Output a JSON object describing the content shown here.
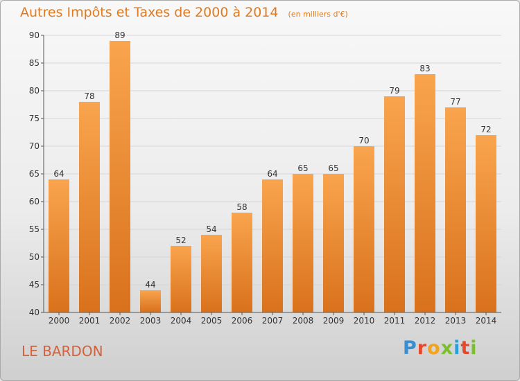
{
  "header": {
    "title": "Autres Impôts et Taxes de 2000 à 2014",
    "unit": "(en milliers d'€)"
  },
  "footer": {
    "commune": "LE BARDON",
    "logo_text": "Proxiti",
    "logo_colors": [
      "#3a8fd1",
      "#e8482a",
      "#f2a21c",
      "#7cbf2e",
      "#2c9fd9",
      "#e8482a",
      "#7cbf2e"
    ]
  },
  "colors": {
    "bar_light": "#f9a44e",
    "bar_dark": "#d9711c",
    "axis": "#555555",
    "grid": "#d6d6d6",
    "title": "#e07a20",
    "commune": "#d4613a"
  },
  "chart_data": {
    "type": "bar",
    "categories": [
      "2000",
      "2001",
      "2002",
      "2003",
      "2004",
      "2005",
      "2006",
      "2007",
      "2008",
      "2009",
      "2010",
      "2011",
      "2012",
      "2013",
      "2014"
    ],
    "values": [
      64,
      78,
      89,
      44,
      52,
      54,
      58,
      64,
      65,
      65,
      70,
      79,
      83,
      77,
      72
    ],
    "title": "Autres Impôts et Taxes de 2000 à 2014",
    "ylim": [
      40,
      90
    ],
    "yticks": [
      40,
      45,
      50,
      55,
      60,
      65,
      70,
      75,
      80,
      85,
      90
    ],
    "grid": true,
    "data_labels": true
  }
}
